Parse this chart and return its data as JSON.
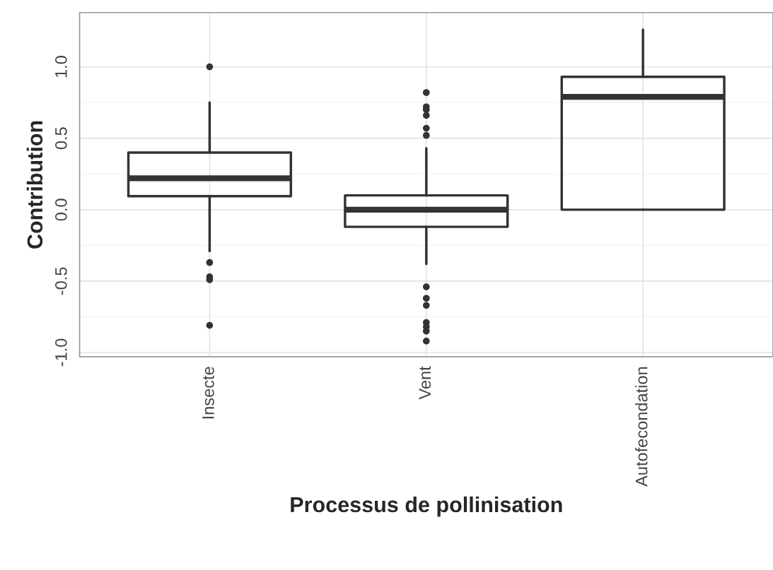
{
  "chart_data": {
    "type": "box",
    "categories": [
      "Insecte",
      "Vent",
      "Autofecondation"
    ],
    "boxes": [
      {
        "low": -0.29,
        "q1": 0.094,
        "median": 0.22,
        "q3": 0.4,
        "high": 0.75,
        "outliers": [
          1.0,
          -0.37,
          -0.47,
          -0.49,
          -0.81
        ]
      },
      {
        "low": -0.38,
        "q1": -0.12,
        "median": 0.0,
        "q3": 0.1,
        "high": 0.43,
        "outliers": [
          0.82,
          0.72,
          0.7,
          0.66,
          0.57,
          0.52,
          -0.54,
          -0.62,
          -0.67,
          -0.79,
          -0.82,
          -0.85,
          -0.92
        ]
      },
      {
        "low": 0.0,
        "q1": 0.0,
        "median": 0.79,
        "q3": 0.93,
        "high": 1.26
      }
    ],
    "color": "#333333",
    "xlabel": "Processus de pollinisation",
    "ylabel": "Contribution",
    "ylim": [
      -1.03,
      1.38
    ],
    "yticks": [
      {
        "value": -1.0,
        "label": "-1.0"
      },
      {
        "value": -0.5,
        "label": "-0.5"
      },
      {
        "value": 0.0,
        "label": "0.0"
      },
      {
        "value": 0.5,
        "label": "0.5"
      },
      {
        "value": 1.0,
        "label": "1.0"
      }
    ],
    "grid": true
  }
}
